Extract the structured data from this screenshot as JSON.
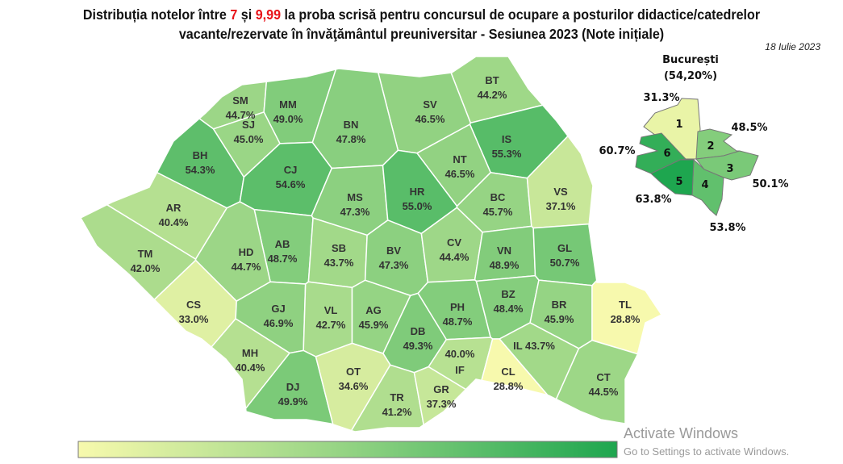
{
  "title": {
    "part1": "Distribuția notelor între ",
    "low": "7",
    "mid": " și ",
    "high": "9,99",
    "part2": " la proba scrisă pentru concursul de ocupare a posturilor didactice/catedrelor",
    "line2": "vacante/rezervate în învăţământul preuniversitar - Sesiunea 2023 (Note inițiale)"
  },
  "date": "18 Iulie 2023",
  "colors": {
    "low": "#f7f9ad",
    "mid": "#93d383",
    "high": "#1ea64f",
    "border": "#8a8a8a"
  },
  "scale_range_percent": [
    28.8,
    63.8
  ],
  "counties": [
    {
      "code": "SM",
      "value": "44.7%"
    },
    {
      "code": "MM",
      "value": "49.0%"
    },
    {
      "code": "BT",
      "value": "44.2%"
    },
    {
      "code": "SV",
      "value": "46.5%"
    },
    {
      "code": "BH",
      "value": "54.3%"
    },
    {
      "code": "SJ",
      "value": "45.0%"
    },
    {
      "code": "CJ",
      "value": "54.6%"
    },
    {
      "code": "BN",
      "value": "47.8%"
    },
    {
      "code": "IS",
      "value": "55.3%"
    },
    {
      "code": "NT",
      "value": "46.5%"
    },
    {
      "code": "MS",
      "value": "47.3%"
    },
    {
      "code": "HR",
      "value": "55.0%"
    },
    {
      "code": "BC",
      "value": "45.7%"
    },
    {
      "code": "VS",
      "value": "37.1%"
    },
    {
      "code": "AR",
      "value": "40.4%"
    },
    {
      "code": "AB",
      "value": "48.7%"
    },
    {
      "code": "HD",
      "value": "44.7%"
    },
    {
      "code": "SB",
      "value": "43.7%"
    },
    {
      "code": "BV",
      "value": "47.3%"
    },
    {
      "code": "CV",
      "value": "44.4%"
    },
    {
      "code": "VN",
      "value": "48.9%"
    },
    {
      "code": "GL",
      "value": "50.7%"
    },
    {
      "code": "TM",
      "value": "42.0%"
    },
    {
      "code": "CS",
      "value": "33.0%"
    },
    {
      "code": "GJ",
      "value": "46.9%"
    },
    {
      "code": "VL",
      "value": "42.7%"
    },
    {
      "code": "AG",
      "value": "45.9%"
    },
    {
      "code": "DB",
      "value": "49.3%"
    },
    {
      "code": "PH",
      "value": "48.7%"
    },
    {
      "code": "BZ",
      "value": "48.4%"
    },
    {
      "code": "BR",
      "value": "45.9%"
    },
    {
      "code": "TL",
      "value": "28.8%"
    },
    {
      "code": "MH",
      "value": "40.4%"
    },
    {
      "code": "DJ",
      "value": "49.9%"
    },
    {
      "code": "OT",
      "value": "34.6%"
    },
    {
      "code": "TR",
      "value": "41.2%"
    },
    {
      "code": "GR",
      "value": "37.3%"
    },
    {
      "code": "IF",
      "value": "40.0%"
    },
    {
      "code": "CL",
      "value": "28.8%"
    },
    {
      "code": "IL",
      "value": "43.7%"
    },
    {
      "code": "CT",
      "value": "44.5%"
    }
  ],
  "bucharest": {
    "title": "București",
    "total": "(54,20%)",
    "sectors": [
      {
        "code": "1",
        "value": "31.3%"
      },
      {
        "code": "2",
        "value": "48.5%"
      },
      {
        "code": "3",
        "value": "50.1%"
      },
      {
        "code": "4",
        "value": "53.8%"
      },
      {
        "code": "5",
        "value": "63.8%"
      },
      {
        "code": "6",
        "value": "60.7%"
      }
    ]
  },
  "watermark": {
    "line1": "Activate Windows",
    "line2": "Go to Settings to activate Windows."
  }
}
